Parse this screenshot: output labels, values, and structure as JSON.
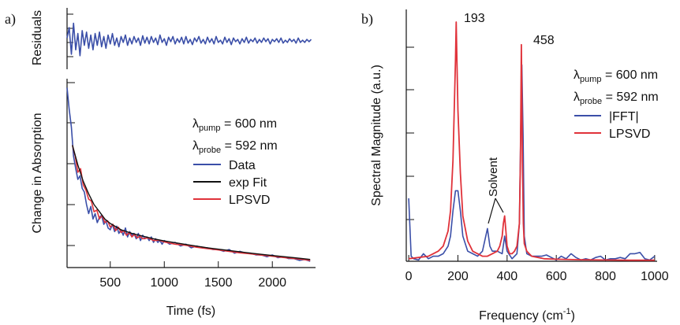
{
  "chart_data": [
    {
      "panel_label": "a)",
      "type": "line",
      "subplots": [
        {
          "id": "residuals",
          "ylabel": "Residuals",
          "series": [
            {
              "color": "#3b4fa8",
              "x": [
                100,
                120,
                140,
                160,
                180,
                200,
                220,
                240,
                260,
                280,
                300,
                320,
                340,
                360,
                380,
                400,
                420,
                440,
                460,
                480,
                500,
                520,
                540,
                560,
                580,
                600,
                620,
                640,
                660,
                680,
                700,
                720,
                740,
                760,
                780,
                800,
                820,
                840,
                860,
                880,
                900,
                920,
                940,
                960,
                980,
                1000,
                1020,
                1040,
                1060,
                1080,
                1100,
                1120,
                1140,
                1160,
                1180,
                1200,
                1220,
                1240,
                1260,
                1280,
                1300,
                1320,
                1340,
                1360,
                1380,
                1400,
                1420,
                1440,
                1460,
                1480,
                1500,
                1520,
                1540,
                1560,
                1580,
                1600,
                1620,
                1640,
                1660,
                1680,
                1700,
                1720,
                1740,
                1760,
                1780,
                1800,
                1820,
                1840,
                1860,
                1880,
                1900,
                1920,
                1940,
                1960,
                1980,
                2000,
                2020,
                2040,
                2060,
                2080,
                2100,
                2120,
                2140,
                2160,
                2180,
                2200,
                2220,
                2240,
                2260,
                2280,
                2300,
                2320,
                2340,
                2360
              ],
              "y": [
                0.2,
                0.9,
                -0.9,
                1.2,
                -0.6,
                0.5,
                -1.0,
                0.7,
                -0.3,
                0.6,
                -0.5,
                0.4,
                -0.6,
                0.5,
                -0.3,
                0.6,
                -0.4,
                0.3,
                -0.5,
                0.4,
                -0.2,
                0.5,
                -0.3,
                0.2,
                -0.4,
                0.3,
                -0.1,
                0.4,
                -0.3,
                0.2,
                -0.2,
                0.3,
                -0.1,
                0.2,
                -0.3,
                0.35,
                -0.15,
                0.25,
                -0.2,
                0.3,
                -0.1,
                0.2,
                -0.25,
                0.4,
                -0.1,
                0.15,
                -0.3,
                0.25,
                -0.05,
                0.3,
                -0.2,
                0.15,
                -0.1,
                0.25,
                -0.2,
                0.3,
                -0.15,
                0.1,
                -0.25,
                0.2,
                -0.05,
                0.3,
                -0.15,
                0.1,
                -0.2,
                0.25,
                -0.1,
                0.15,
                -0.2,
                0.3,
                -0.1,
                0.05,
                -0.2,
                0.25,
                -0.1,
                0.15,
                -0.25,
                0.2,
                -0.05,
                0.1,
                -0.2,
                0.15,
                -0.1,
                0.25,
                -0.15,
                0.1,
                -0.05,
                0.2,
                -0.15,
                0.1,
                -0.1,
                0.2,
                -0.05,
                0.15,
                -0.2,
                0.1,
                -0.05,
                0.15,
                -0.1,
                0.2,
                -0.15,
                0.05,
                -0.1,
                0.15,
                -0.05,
                0.1,
                -0.15,
                0.2,
                -0.1,
                0.05,
                -0.1,
                0.1,
                -0.05,
                0.1
              ]
            }
          ],
          "ylim": [
            -1.6,
            1.6
          ]
        },
        {
          "id": "decay",
          "xlabel": "Time (fs)",
          "ylabel": "Change in Absorption",
          "xlim": [
            100,
            2400
          ],
          "ylim": [
            0,
            1.05
          ],
          "xticks": [
            500,
            1000,
            1500,
            2000
          ],
          "legend": {
            "placement": "right-middle",
            "pump_main": "λ",
            "pump_sub": "pump",
            "pump_rest": " = 600 nm",
            "probe_main": "λ",
            "probe_sub": "probe",
            "probe_rest": " = 592 nm"
          },
          "series": [
            {
              "name": "Data",
              "color": "#3b4fa8",
              "x": [
                100,
                120,
                140,
                160,
                180,
                200,
                220,
                240,
                260,
                280,
                300,
                320,
                340,
                360,
                380,
                400,
                420,
                440,
                460,
                480,
                500,
                520,
                540,
                560,
                580,
                600,
                620,
                640,
                660,
                680,
                700,
                720,
                740,
                760,
                780,
                800,
                820,
                840,
                860,
                880,
                900,
                920,
                940,
                960,
                980,
                1000,
                1050,
                1100,
                1150,
                1200,
                1250,
                1300,
                1350,
                1400,
                1450,
                1500,
                1550,
                1600,
                1650,
                1700,
                1750,
                1800,
                1850,
                1900,
                1950,
                2000,
                2050,
                2100,
                2150,
                2200,
                2250,
                2300,
                2350
              ],
              "y": [
                1.0,
                0.88,
                0.78,
                0.62,
                0.55,
                0.49,
                0.51,
                0.44,
                0.42,
                0.35,
                0.3,
                0.34,
                0.27,
                0.3,
                0.25,
                0.28,
                0.29,
                0.24,
                0.26,
                0.22,
                0.21,
                0.24,
                0.2,
                0.23,
                0.19,
                0.21,
                0.18,
                0.22,
                0.17,
                0.2,
                0.18,
                0.19,
                0.16,
                0.19,
                0.15,
                0.18,
                0.16,
                0.17,
                0.15,
                0.17,
                0.14,
                0.16,
                0.14,
                0.15,
                0.13,
                0.15,
                0.13,
                0.14,
                0.12,
                0.13,
                0.11,
                0.12,
                0.11,
                0.11,
                0.1,
                0.1,
                0.09,
                0.1,
                0.08,
                0.09,
                0.08,
                0.08,
                0.07,
                0.07,
                0.06,
                0.07,
                0.055,
                0.06,
                0.05,
                0.05,
                0.04,
                0.045,
                0.035
              ]
            },
            {
              "name": "exp Fit",
              "color": "#111111",
              "x": [
                150,
                200,
                250,
                300,
                350,
                400,
                450,
                500,
                600,
                700,
                800,
                900,
                1000,
                1200,
                1400,
                1600,
                1800,
                2000,
                2200,
                2350
              ],
              "y": [
                0.68,
                0.57,
                0.48,
                0.41,
                0.35,
                0.31,
                0.27,
                0.245,
                0.21,
                0.19,
                0.175,
                0.16,
                0.148,
                0.128,
                0.11,
                0.095,
                0.08,
                0.067,
                0.055,
                0.045
              ]
            },
            {
              "name": "LPSVD",
              "color": "#e0323a",
              "x": [
                150,
                175,
                200,
                225,
                250,
                275,
                300,
                325,
                350,
                375,
                400,
                425,
                450,
                475,
                500,
                525,
                550,
                575,
                600,
                625,
                650,
                675,
                700,
                725,
                750,
                775,
                800,
                850,
                900,
                950,
                1000,
                1100,
                1200,
                1300,
                1400,
                1500,
                1600,
                1700,
                1800,
                1900,
                2000,
                2100,
                2200,
                2300,
                2350
              ],
              "y": [
                0.68,
                0.62,
                0.53,
                0.55,
                0.46,
                0.43,
                0.38,
                0.37,
                0.31,
                0.32,
                0.27,
                0.29,
                0.25,
                0.26,
                0.225,
                0.24,
                0.205,
                0.225,
                0.195,
                0.205,
                0.18,
                0.195,
                0.17,
                0.185,
                0.165,
                0.175,
                0.16,
                0.165,
                0.15,
                0.152,
                0.142,
                0.13,
                0.124,
                0.113,
                0.105,
                0.098,
                0.09,
                0.082,
                0.076,
                0.069,
                0.063,
                0.056,
                0.05,
                0.044,
                0.04
              ]
            }
          ]
        }
      ]
    },
    {
      "panel_label": "b)",
      "type": "line",
      "xlabel_main": "Frequency (cm",
      "xlabel_sup": "-1",
      "xlabel_end": ")",
      "ylabel": "Spectral Magnitude (a.u.)",
      "xlim": [
        -10,
        1010
      ],
      "ylim": [
        0,
        1.0
      ],
      "xticks": [
        0,
        200,
        400,
        600,
        800,
        1000
      ],
      "annotations": {
        "peak1": "193",
        "peak2": "458",
        "solvent": "Solvent"
      },
      "legend": {
        "placement": "right-top",
        "pump_main": "λ",
        "pump_sub": "pump",
        "pump_rest": " = 600 nm",
        "probe_main": "λ",
        "probe_sub": "probe",
        "probe_rest": " = 592 nm"
      },
      "series": [
        {
          "name": "|FFT|",
          "color": "#3b4fa8",
          "x": [
            0,
            10,
            20,
            40,
            60,
            80,
            100,
            120,
            140,
            160,
            170,
            180,
            190,
            200,
            210,
            220,
            240,
            260,
            280,
            300,
            320,
            330,
            340,
            360,
            380,
            390,
            400,
            420,
            440,
            450,
            455,
            460,
            465,
            470,
            480,
            500,
            520,
            540,
            560,
            580,
            600,
            620,
            640,
            660,
            680,
            700,
            720,
            740,
            760,
            780,
            800,
            820,
            840,
            860,
            880,
            900,
            920,
            940,
            960,
            980,
            1000
          ],
          "y": [
            0.25,
            0.02,
            0.01,
            0.005,
            0.03,
            0.01,
            0.02,
            0.02,
            0.03,
            0.06,
            0.1,
            0.2,
            0.28,
            0.28,
            0.2,
            0.1,
            0.04,
            0.03,
            0.02,
            0.04,
            0.13,
            0.06,
            0.04,
            0.04,
            0.03,
            0.1,
            0.04,
            0.01,
            0.03,
            0.15,
            0.5,
            0.78,
            0.5,
            0.1,
            0.03,
            0.02,
            0.02,
            0.02,
            0.025,
            0.015,
            0.005,
            0.02,
            0.01,
            0.03,
            0.015,
            0.005,
            0.01,
            0.005,
            0.015,
            0.02,
            0.005,
            0.01,
            0.01,
            0.015,
            0.01,
            0.03,
            0.03,
            0.035,
            0.01,
            0.005,
            0.02
          ]
        },
        {
          "name": "LPSVD",
          "color": "#e0323a",
          "x": [
            0,
            40,
            80,
            120,
            140,
            160,
            170,
            180,
            185,
            190,
            193,
            196,
            200,
            210,
            220,
            240,
            260,
            280,
            300,
            320,
            340,
            360,
            370,
            380,
            385,
            390,
            395,
            400,
            410,
            420,
            430,
            440,
            450,
            454,
            458,
            462,
            466,
            470,
            480,
            500,
            550,
            600,
            700,
            800,
            900,
            1000
          ],
          "y": [
            0.01,
            0.015,
            0.02,
            0.04,
            0.06,
            0.12,
            0.2,
            0.4,
            0.6,
            0.8,
            0.95,
            0.8,
            0.6,
            0.35,
            0.18,
            0.08,
            0.04,
            0.03,
            0.02,
            0.02,
            0.03,
            0.04,
            0.06,
            0.1,
            0.15,
            0.18,
            0.12,
            0.06,
            0.03,
            0.03,
            0.04,
            0.06,
            0.15,
            0.4,
            0.86,
            0.4,
            0.15,
            0.07,
            0.04,
            0.02,
            0.01,
            0.008,
            0.006,
            0.005,
            0.004,
            0.004
          ]
        }
      ]
    }
  ]
}
